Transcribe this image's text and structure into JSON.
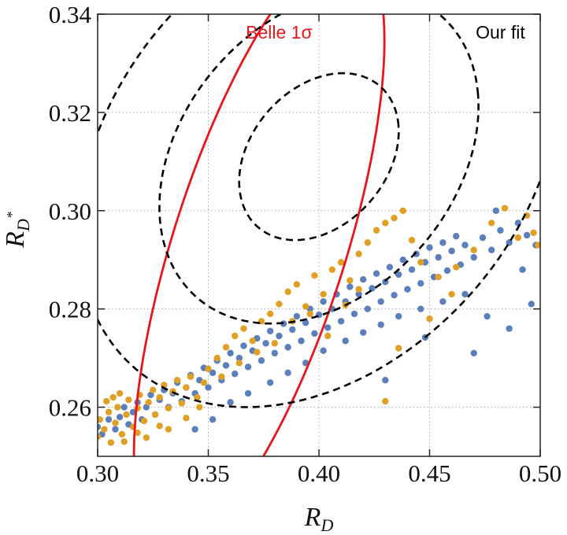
{
  "chart_data": {
    "type": "scatter",
    "title": "",
    "xlabel": "R_D",
    "ylabel": "R_D*",
    "xlim": [
      0.3,
      0.5
    ],
    "ylim": [
      0.25,
      0.34
    ],
    "x_ticks": [
      "0.30",
      "0.35",
      "0.40",
      "0.45",
      "0.50"
    ],
    "y_ticks": [
      "0.26",
      "0.28",
      "0.30",
      "0.32",
      "0.34"
    ],
    "grid": true,
    "annotations": [
      {
        "text": "Belle 1σ",
        "color": "#e8161b",
        "x": 0.382,
        "y": 0.335
      },
      {
        "text": "Our fit",
        "color": "#000000",
        "x": 0.482,
        "y": 0.335
      }
    ],
    "contours": [
      {
        "name": "Belle 1σ",
        "color": "#e8161b",
        "style": "solid",
        "center": [
          0.373,
          0.2925
        ],
        "rx": 0.0765,
        "ry": 0.0325,
        "angle_deg": 48
      },
      {
        "name": "Our fit 1σ",
        "color": "#000000",
        "style": "dashed",
        "center": [
          0.4,
          0.311
        ],
        "rx": 0.0365,
        "ry": 0.016,
        "angle_deg": 10
      },
      {
        "name": "Our fit 2σ",
        "color": "#000000",
        "style": "dashed",
        "center": [
          0.4,
          0.311
        ],
        "rx": 0.073,
        "ry": 0.032,
        "angle_deg": 10
      },
      {
        "name": "Our fit 3σ",
        "color": "#000000",
        "style": "dashed",
        "center": [
          0.4,
          0.311
        ],
        "rx": 0.11,
        "ry": 0.048,
        "angle_deg": 10
      }
    ],
    "series": [
      {
        "color": "#5b7fbb",
        "points": [
          [
            0.3,
            0.256
          ],
          [
            0.302,
            0.2545
          ],
          [
            0.305,
            0.2575
          ],
          [
            0.308,
            0.2555
          ],
          [
            0.31,
            0.258
          ],
          [
            0.312,
            0.26
          ],
          [
            0.314,
            0.2565
          ],
          [
            0.316,
            0.259
          ],
          [
            0.318,
            0.261
          ],
          [
            0.32,
            0.2575
          ],
          [
            0.322,
            0.26
          ],
          [
            0.324,
            0.2625
          ],
          [
            0.326,
            0.2585
          ],
          [
            0.328,
            0.2615
          ],
          [
            0.33,
            0.2635
          ],
          [
            0.332,
            0.26
          ],
          [
            0.334,
            0.2628
          ],
          [
            0.336,
            0.265
          ],
          [
            0.338,
            0.2612
          ],
          [
            0.34,
            0.264
          ],
          [
            0.342,
            0.2665
          ],
          [
            0.344,
            0.2628
          ],
          [
            0.346,
            0.2655
          ],
          [
            0.348,
            0.268
          ],
          [
            0.35,
            0.264
          ],
          [
            0.352,
            0.267
          ],
          [
            0.354,
            0.2695
          ],
          [
            0.356,
            0.2655
          ],
          [
            0.358,
            0.2685
          ],
          [
            0.36,
            0.271
          ],
          [
            0.362,
            0.2668
          ],
          [
            0.364,
            0.27
          ],
          [
            0.366,
            0.2725
          ],
          [
            0.368,
            0.2682
          ],
          [
            0.37,
            0.2715
          ],
          [
            0.372,
            0.274
          ],
          [
            0.374,
            0.2695
          ],
          [
            0.376,
            0.273
          ],
          [
            0.378,
            0.2755
          ],
          [
            0.38,
            0.271
          ],
          [
            0.382,
            0.2745
          ],
          [
            0.384,
            0.277
          ],
          [
            0.386,
            0.2722
          ],
          [
            0.388,
            0.2758
          ],
          [
            0.39,
            0.2785
          ],
          [
            0.392,
            0.2735
          ],
          [
            0.394,
            0.2772
          ],
          [
            0.396,
            0.28
          ],
          [
            0.398,
            0.275
          ],
          [
            0.4,
            0.2788
          ],
          [
            0.402,
            0.2815
          ],
          [
            0.404,
            0.2762
          ],
          [
            0.406,
            0.28
          ],
          [
            0.408,
            0.283
          ],
          [
            0.41,
            0.2775
          ],
          [
            0.412,
            0.2815
          ],
          [
            0.414,
            0.2845
          ],
          [
            0.416,
            0.279
          ],
          [
            0.418,
            0.283
          ],
          [
            0.42,
            0.286
          ],
          [
            0.422,
            0.28
          ],
          [
            0.424,
            0.2842
          ],
          [
            0.426,
            0.2872
          ],
          [
            0.428,
            0.2815
          ],
          [
            0.43,
            0.2855
          ],
          [
            0.432,
            0.2885
          ],
          [
            0.434,
            0.2828
          ],
          [
            0.436,
            0.287
          ],
          [
            0.438,
            0.29
          ],
          [
            0.44,
            0.284
          ],
          [
            0.442,
            0.288
          ],
          [
            0.444,
            0.2912
          ],
          [
            0.446,
            0.2852
          ],
          [
            0.448,
            0.2895
          ],
          [
            0.45,
            0.2925
          ],
          [
            0.452,
            0.2865
          ],
          [
            0.454,
            0.2905
          ],
          [
            0.456,
            0.2935
          ],
          [
            0.458,
            0.2878
          ],
          [
            0.46,
            0.2918
          ],
          [
            0.462,
            0.2948
          ],
          [
            0.464,
            0.289
          ],
          [
            0.466,
            0.293
          ],
          [
            0.47,
            0.2905
          ],
          [
            0.474,
            0.2945
          ],
          [
            0.478,
            0.292
          ],
          [
            0.482,
            0.296
          ],
          [
            0.486,
            0.2935
          ],
          [
            0.49,
            0.2975
          ],
          [
            0.494,
            0.295
          ],
          [
            0.498,
            0.293
          ],
          [
            0.344,
            0.2555
          ],
          [
            0.352,
            0.2575
          ],
          [
            0.36,
            0.261
          ],
          [
            0.368,
            0.2628
          ],
          [
            0.378,
            0.265
          ],
          [
            0.386,
            0.267
          ],
          [
            0.394,
            0.269
          ],
          [
            0.402,
            0.2715
          ],
          [
            0.412,
            0.2735
          ],
          [
            0.42,
            0.2752
          ],
          [
            0.428,
            0.2768
          ],
          [
            0.436,
            0.2785
          ],
          [
            0.446,
            0.28
          ],
          [
            0.456,
            0.2815
          ],
          [
            0.466,
            0.283
          ],
          [
            0.476,
            0.2785
          ],
          [
            0.486,
            0.276
          ],
          [
            0.496,
            0.281
          ],
          [
            0.43,
            0.2655
          ],
          [
            0.448,
            0.2742
          ],
          [
            0.47,
            0.271
          ],
          [
            0.492,
            0.288
          ],
          [
            0.48,
            0.3
          ]
        ]
      },
      {
        "color": "#e0a024",
        "points": [
          [
            0.3,
            0.254
          ],
          [
            0.301,
            0.2575
          ],
          [
            0.303,
            0.2555
          ],
          [
            0.305,
            0.259
          ],
          [
            0.306,
            0.2528
          ],
          [
            0.308,
            0.2568
          ],
          [
            0.309,
            0.26
          ],
          [
            0.311,
            0.2545
          ],
          [
            0.313,
            0.2585
          ],
          [
            0.314,
            0.2615
          ],
          [
            0.316,
            0.256
          ],
          [
            0.318,
            0.2598
          ],
          [
            0.319,
            0.2625
          ],
          [
            0.321,
            0.2572
          ],
          [
            0.323,
            0.261
          ],
          [
            0.325,
            0.2635
          ],
          [
            0.326,
            0.2585
          ],
          [
            0.328,
            0.262
          ],
          [
            0.33,
            0.2645
          ],
          [
            0.332,
            0.2598
          ],
          [
            0.334,
            0.2632
          ],
          [
            0.336,
            0.2655
          ],
          [
            0.338,
            0.2608
          ],
          [
            0.34,
            0.264
          ],
          [
            0.342,
            0.2662
          ],
          [
            0.345,
            0.262
          ],
          [
            0.348,
            0.265
          ],
          [
            0.35,
            0.2678
          ],
          [
            0.354,
            0.27
          ],
          [
            0.358,
            0.2722
          ],
          [
            0.362,
            0.2745
          ],
          [
            0.366,
            0.276
          ],
          [
            0.37,
            0.2735
          ],
          [
            0.374,
            0.2775
          ],
          [
            0.378,
            0.279
          ],
          [
            0.382,
            0.281
          ],
          [
            0.386,
            0.2835
          ],
          [
            0.39,
            0.285
          ],
          [
            0.394,
            0.2805
          ],
          [
            0.398,
            0.2868
          ],
          [
            0.402,
            0.283
          ],
          [
            0.406,
            0.288
          ],
          [
            0.41,
            0.2895
          ],
          [
            0.414,
            0.2858
          ],
          [
            0.418,
            0.2912
          ],
          [
            0.422,
            0.2935
          ],
          [
            0.426,
            0.296
          ],
          [
            0.43,
            0.2975
          ],
          [
            0.434,
            0.2985
          ],
          [
            0.438,
            0.3
          ],
          [
            0.442,
            0.294
          ],
          [
            0.446,
            0.2895
          ],
          [
            0.454,
            0.2865
          ],
          [
            0.462,
            0.2885
          ],
          [
            0.47,
            0.292
          ],
          [
            0.478,
            0.2975
          ],
          [
            0.484,
            0.3005
          ],
          [
            0.49,
            0.2945
          ],
          [
            0.494,
            0.299
          ],
          [
            0.497,
            0.2955
          ],
          [
            0.499,
            0.293
          ],
          [
            0.332,
            0.2555
          ],
          [
            0.34,
            0.2578
          ],
          [
            0.346,
            0.26
          ],
          [
            0.356,
            0.2662
          ],
          [
            0.364,
            0.269
          ],
          [
            0.372,
            0.2712
          ],
          [
            0.38,
            0.273
          ],
          [
            0.388,
            0.2775
          ],
          [
            0.396,
            0.279
          ],
          [
            0.404,
            0.2745
          ],
          [
            0.412,
            0.2808
          ],
          [
            0.418,
            0.284
          ],
          [
            0.43,
            0.2612
          ],
          [
            0.436,
            0.272
          ],
          [
            0.45,
            0.278
          ],
          [
            0.46,
            0.283
          ],
          [
            0.312,
            0.253
          ],
          [
            0.318,
            0.2548
          ],
          [
            0.322,
            0.2538
          ],
          [
            0.328,
            0.2562
          ],
          [
            0.304,
            0.2612
          ],
          [
            0.307,
            0.262
          ],
          [
            0.31,
            0.2628
          ]
        ]
      }
    ]
  }
}
